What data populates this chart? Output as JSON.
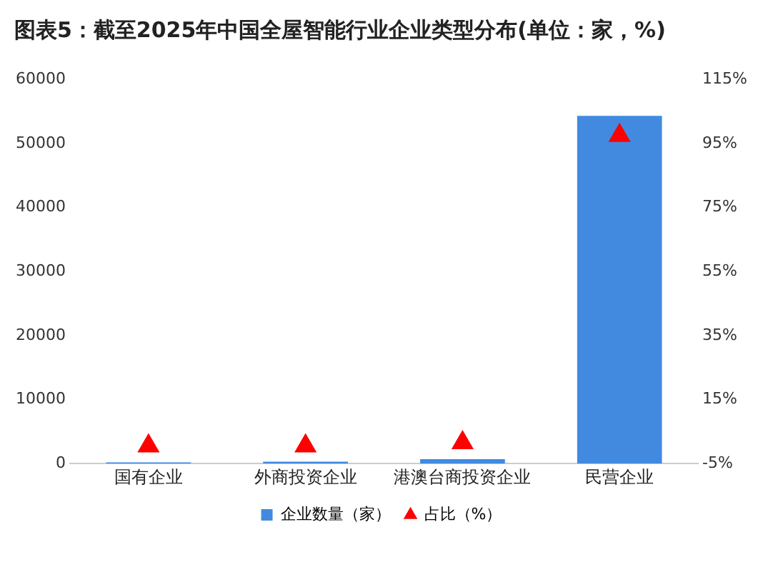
{
  "chart_data": {
    "type": "bar",
    "title": "图表5：截至2025年中国全屋智能行业企业类型分布(单位：家，%)",
    "categories": [
      "国有企业",
      "外商投资企业",
      "港澳台商投资企业",
      "民营企业"
    ],
    "series": [
      {
        "name": "企业数量（家）",
        "color": "#418ae0",
        "values": [
          200,
          300,
          700,
          54300
        ]
      },
      {
        "name": "占比（%）",
        "type": "scatter",
        "color": "#ff0000",
        "axis": "y2",
        "marker": "triangle",
        "values": [
          0.5,
          0.5,
          1.5,
          97.5
        ]
      }
    ],
    "ylim": [
      0,
      60000
    ],
    "yticks": [
      0,
      10000,
      20000,
      30000,
      40000,
      50000,
      60000
    ],
    "y2lim": [
      -5,
      115
    ],
    "y2ticks": [
      {
        "value": -5,
        "label": "-5%"
      },
      {
        "value": 15,
        "label": "15%"
      },
      {
        "value": 35,
        "label": "35%"
      },
      {
        "value": 55,
        "label": "55%"
      },
      {
        "value": 75,
        "label": "75%"
      },
      {
        "value": 95,
        "label": "95%"
      },
      {
        "value": 115,
        "label": "115%"
      }
    ],
    "grid": false,
    "legend": "bottom"
  }
}
